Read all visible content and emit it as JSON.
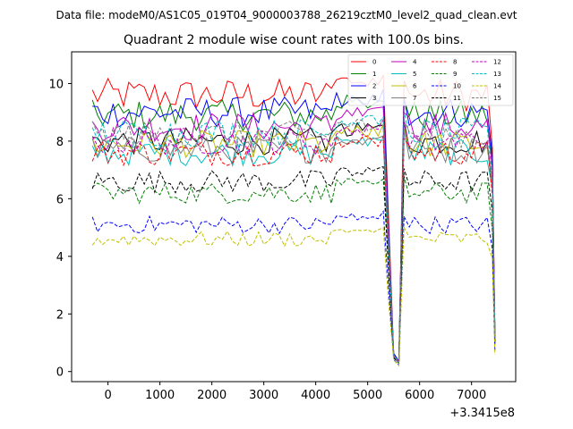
{
  "suptitle": "Data file: modeM0/AS1C05_019T04_9000003788_26219cztM0_level2_quad_clean.evt",
  "chart_data": {
    "type": "line",
    "title": "Quadrant 2 module wise count rates with 100.0s bins.",
    "xlabel": "",
    "ylabel": "",
    "x_offset_label": "+3.3415e8",
    "xlim": [
      -700,
      7850
    ],
    "ylim": [
      -0.35,
      11.1
    ],
    "xticks": [
      0,
      1000,
      2000,
      3000,
      4000,
      5000,
      6000,
      7000
    ],
    "yticks": [
      0,
      2,
      4,
      6,
      8,
      10
    ],
    "xtick_labels": [
      "0",
      "1000",
      "2000",
      "3000",
      "4000",
      "5000",
      "6000",
      "7000"
    ],
    "ytick_labels": [
      "0",
      "2",
      "4",
      "6",
      "8",
      "10"
    ],
    "grid": false,
    "legend_position": "top-right",
    "series": [
      {
        "name": "0",
        "color": "#ff0000",
        "dash": "solid",
        "base": 9.6
      },
      {
        "name": "1",
        "color": "#008000",
        "dash": "solid",
        "base": 8.9
      },
      {
        "name": "2",
        "color": "#0000ff",
        "dash": "solid",
        "base": 9.0
      },
      {
        "name": "3",
        "color": "#000000",
        "dash": "solid",
        "base": 8.0
      },
      {
        "name": "4",
        "color": "#bf00bf",
        "dash": "solid",
        "base": 8.5
      },
      {
        "name": "5",
        "color": "#00bfbf",
        "dash": "solid",
        "base": 7.6
      },
      {
        "name": "6",
        "color": "#bfbf00",
        "dash": "solid",
        "base": 7.9
      },
      {
        "name": "7",
        "color": "#808080",
        "dash": "solid",
        "base": 7.7
      },
      {
        "name": "8",
        "color": "#ff0000",
        "dash": "dashed",
        "base": 7.6
      },
      {
        "name": "9",
        "color": "#008000",
        "dash": "dashed",
        "base": 6.2
      },
      {
        "name": "10",
        "color": "#0000ff",
        "dash": "dashed",
        "base": 5.1
      },
      {
        "name": "11",
        "color": "#000000",
        "dash": "dashed",
        "base": 6.6
      },
      {
        "name": "12",
        "color": "#bf00bf",
        "dash": "dashed",
        "base": 8.0
      },
      {
        "name": "13",
        "color": "#00bfbf",
        "dash": "dashed",
        "base": 8.3
      },
      {
        "name": "14",
        "color": "#bfbf00",
        "dash": "dashed",
        "base": 4.6
      },
      {
        "name": "15",
        "color": "#808080",
        "dash": "dashed",
        "base": 8.2
      }
    ],
    "time_range": [
      -300,
      7450
    ],
    "dip_points": [
      {
        "x": 5300,
        "factor": 1.0
      },
      {
        "x": 5400,
        "factor": 0.55
      },
      {
        "x": 5500,
        "factor": 0.05
      },
      {
        "x": 5600,
        "factor": 0.02
      },
      {
        "x": 5700,
        "factor": 1.0
      },
      {
        "x": 7400,
        "factor": 0.82
      },
      {
        "x": 7450,
        "factor": 0.14
      }
    ]
  }
}
